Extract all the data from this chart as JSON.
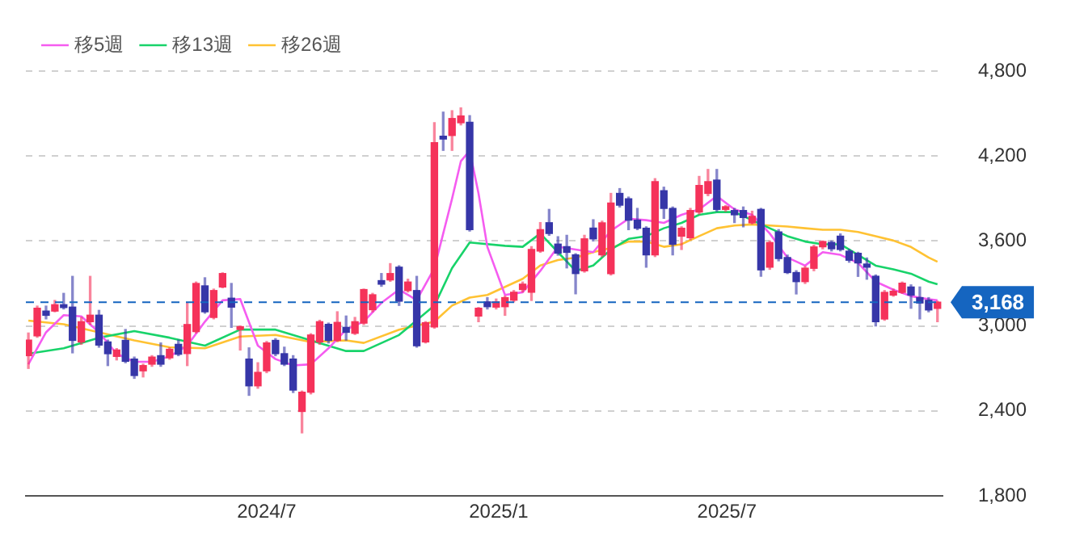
{
  "chart_data": {
    "type": "candlestick",
    "x": [
      "2023-12-25",
      "2024-01-01",
      "2024-01-08",
      "2024-01-15",
      "2024-01-22",
      "2024-01-29",
      "2024-02-05",
      "2024-02-12",
      "2024-02-19",
      "2024-02-26",
      "2024-03-04",
      "2024-03-11",
      "2024-03-18",
      "2024-03-25",
      "2024-04-01",
      "2024-04-08",
      "2024-04-15",
      "2024-04-22",
      "2024-04-29",
      "2024-05-06",
      "2024-05-13",
      "2024-05-20",
      "2024-05-27",
      "2024-06-03",
      "2024-06-10",
      "2024-06-17",
      "2024-06-24",
      "2024-07-01",
      "2024-07-08",
      "2024-07-15",
      "2024-07-22",
      "2024-07-29",
      "2024-08-05",
      "2024-08-12",
      "2024-08-19",
      "2024-08-26",
      "2024-09-02",
      "2024-09-09",
      "2024-09-16",
      "2024-09-23",
      "2024-09-30",
      "2024-10-07",
      "2024-10-14",
      "2024-10-21",
      "2024-10-28",
      "2024-11-04",
      "2024-11-11",
      "2024-11-18",
      "2024-11-25",
      "2024-12-02",
      "2024-12-09",
      "2024-12-16",
      "2024-12-23",
      "2024-12-30",
      "2025-01-06",
      "2025-01-13",
      "2025-01-20",
      "2025-01-27",
      "2025-02-03",
      "2025-02-10",
      "2025-02-17",
      "2025-02-24",
      "2025-03-03",
      "2025-03-10",
      "2025-03-17",
      "2025-03-24",
      "2025-03-31",
      "2025-04-07",
      "2025-04-14",
      "2025-04-21",
      "2025-04-28",
      "2025-05-05",
      "2025-05-12",
      "2025-05-19",
      "2025-05-26",
      "2025-06-02",
      "2025-06-09",
      "2025-06-16",
      "2025-06-23",
      "2025-06-30",
      "2025-07-07",
      "2025-07-14",
      "2025-07-21",
      "2025-07-28",
      "2025-08-04",
      "2025-08-11",
      "2025-08-18",
      "2025-08-25",
      "2025-09-01",
      "2025-09-08",
      "2025-09-15",
      "2025-09-22",
      "2025-09-29",
      "2025-10-06",
      "2025-10-13",
      "2025-10-20",
      "2025-10-27",
      "2025-11-03",
      "2025-11-10",
      "2025-11-17",
      "2025-11-24",
      "2025-12-01",
      "2025-12-08",
      "2025-12-15"
    ],
    "ohlc": [
      [
        2790,
        2950,
        2700,
        2900
      ],
      [
        2930,
        3140,
        2920,
        3125
      ],
      [
        3105,
        3140,
        3050,
        3075
      ],
      [
        3105,
        3180,
        3100,
        3150
      ],
      [
        3150,
        3230,
        3120,
        3130
      ],
      [
        3133,
        3350,
        2810,
        2898
      ],
      [
        2887,
        3060,
        2870,
        3030
      ],
      [
        3030,
        3350,
        3010,
        3076
      ],
      [
        3076,
        3110,
        2850,
        2865
      ],
      [
        2887,
        2900,
        2720,
        2804
      ],
      [
        2785,
        2840,
        2760,
        2830
      ],
      [
        2898,
        2975,
        2740,
        2750
      ],
      [
        2766,
        2780,
        2630,
        2650
      ],
      [
        2683,
        2730,
        2640,
        2720
      ],
      [
        2730,
        2790,
        2715,
        2780
      ],
      [
        2790,
        2880,
        2715,
        2730
      ],
      [
        2775,
        2845,
        2765,
        2835
      ],
      [
        2870,
        2900,
        2790,
        2800
      ],
      [
        2805,
        3165,
        2720,
        3010
      ],
      [
        2960,
        3310,
        2950,
        3300
      ],
      [
        3283,
        3340,
        3090,
        3100
      ],
      [
        3060,
        3260,
        3050,
        3250
      ],
      [
        3275,
        3375,
        3270,
        3370
      ],
      [
        3196,
        3300,
        2990,
        3133
      ],
      [
        2975,
        3000,
        2830,
        2995
      ],
      [
        2766,
        2845,
        2510,
        2577
      ],
      [
        2577,
        2740,
        2560,
        2672
      ],
      [
        2683,
        2890,
        2670,
        2880
      ],
      [
        2898,
        2910,
        2790,
        2804
      ],
      [
        2804,
        2850,
        2720,
        2730
      ],
      [
        2766,
        2790,
        2530,
        2547
      ],
      [
        2396,
        2540,
        2245,
        2532
      ],
      [
        2532,
        2945,
        2520,
        2936
      ],
      [
        2887,
        3040,
        2870,
        3030
      ],
      [
        3011,
        3020,
        2880,
        2898
      ],
      [
        2898,
        3100,
        2890,
        3025
      ],
      [
        2990,
        3070,
        2900,
        2955
      ],
      [
        2948,
        3060,
        2940,
        3030
      ],
      [
        3020,
        3260,
        3010,
        3257
      ],
      [
        3115,
        3230,
        3100,
        3220
      ],
      [
        3320,
        3370,
        3280,
        3295
      ],
      [
        3325,
        3440,
        3315,
        3370
      ],
      [
        3415,
        3425,
        3145,
        3175
      ],
      [
        3250,
        3330,
        3240,
        3310
      ],
      [
        3250,
        3350,
        2850,
        2860
      ],
      [
        2887,
        3030,
        2880,
        3023
      ],
      [
        2993,
        4435,
        2985,
        4295
      ],
      [
        4340,
        4510,
        4240,
        4320
      ],
      [
        4345,
        4520,
        4240,
        4465
      ],
      [
        4435,
        4540,
        4420,
        4483
      ],
      [
        4438,
        4485,
        3670,
        3680
      ],
      [
        3070,
        3130,
        3030,
        3125
      ],
      [
        3170,
        3200,
        3120,
        3136
      ],
      [
        3133,
        3190,
        3120,
        3170
      ],
      [
        3136,
        3210,
        3075,
        3200
      ],
      [
        3182,
        3250,
        3170,
        3238
      ],
      [
        3257,
        3310,
        3240,
        3295
      ],
      [
        3238,
        3560,
        3180,
        3540
      ],
      [
        3529,
        3730,
        3520,
        3680
      ],
      [
        3729,
        3823,
        3640,
        3653
      ],
      [
        3578,
        3630,
        3500,
        3514
      ],
      [
        3560,
        3640,
        3410,
        3520
      ],
      [
        3502,
        3510,
        3227,
        3370
      ],
      [
        3389,
        3640,
        3380,
        3615
      ],
      [
        3691,
        3750,
        3600,
        3615
      ],
      [
        3502,
        3740,
        3490,
        3728
      ],
      [
        3370,
        3936,
        3360,
        3868
      ],
      [
        3936,
        3970,
        3840,
        3853
      ],
      [
        3898,
        3910,
        3680,
        3747
      ],
      [
        3747,
        3830,
        3680,
        3690
      ],
      [
        3690,
        3700,
        3415,
        3502
      ],
      [
        3502,
        4040,
        3490,
        4019
      ],
      [
        3955,
        3980,
        3760,
        3830
      ],
      [
        3830,
        3840,
        3502,
        3577
      ],
      [
        3634,
        3700,
        3540,
        3690
      ],
      [
        3623,
        3830,
        3610,
        3815
      ],
      [
        3804,
        4056,
        3790,
        3992
      ],
      [
        3936,
        4105,
        3920,
        4019
      ],
      [
        4030,
        4105,
        3810,
        3823
      ],
      [
        3823,
        3850,
        3810,
        3842
      ],
      [
        3815,
        3830,
        3730,
        3785
      ],
      [
        3815,
        3840,
        3700,
        3766
      ],
      [
        3728,
        3810,
        3720,
        3774
      ],
      [
        3823,
        3830,
        3351,
        3396
      ],
      [
        3415,
        3600,
        3400,
        3589
      ],
      [
        3664,
        3680,
        3460,
        3476
      ],
      [
        3483,
        3500,
        3370,
        3377
      ],
      [
        3377,
        3390,
        3226,
        3313
      ],
      [
        3313,
        3420,
        3300,
        3408
      ],
      [
        3407,
        3570,
        3390,
        3558
      ],
      [
        3559,
        3600,
        3545,
        3596
      ],
      [
        3590,
        3600,
        3530,
        3545
      ],
      [
        3634,
        3650,
        3530,
        3540
      ],
      [
        3528,
        3540,
        3450,
        3464
      ],
      [
        3513,
        3520,
        3350,
        3445
      ],
      [
        3437,
        3480,
        3330,
        3415
      ],
      [
        3351,
        3360,
        3000,
        3030
      ],
      [
        3049,
        3250,
        3040,
        3237
      ],
      [
        3218,
        3260,
        3210,
        3245
      ],
      [
        3237,
        3310,
        3230,
        3302
      ],
      [
        3275,
        3290,
        3125,
        3218
      ],
      [
        3200,
        3275,
        3050,
        3162
      ],
      [
        3181,
        3200,
        3100,
        3113
      ],
      [
        3124,
        3175,
        3030,
        3168
      ]
    ],
    "colors": [
      "#f5325a",
      "#f5325a",
      "#3636a8",
      "#f5325a",
      "#3636a8",
      "#3636a8",
      "#f5325a",
      "#f5325a",
      "#3636a8",
      "#3636a8",
      "#f5325a",
      "#3636a8",
      "#3636a8",
      "#f5325a",
      "#f5325a",
      "#3636a8",
      "#f5325a",
      "#3636a8",
      "#f5325a",
      "#f5325a",
      "#3636a8",
      "#f5325a",
      "#f5325a",
      "#3636a8",
      "#f5325a",
      "#3636a8",
      "#f5325a",
      "#f5325a",
      "#3636a8",
      "#3636a8",
      "#3636a8",
      "#f5325a",
      "#f5325a",
      "#f5325a",
      "#3636a8",
      "#f5325a",
      "#3636a8",
      "#f5325a",
      "#f5325a",
      "#f5325a",
      "#3636a8",
      "#f5325a",
      "#3636a8",
      "#f5325a",
      "#3636a8",
      "#f5325a",
      "#f5325a",
      "#3636a8",
      "#f5325a",
      "#f5325a",
      "#3636a8",
      "#f5325a",
      "#3636a8",
      "#f5325a",
      "#f5325a",
      "#f5325a",
      "#f5325a",
      "#f5325a",
      "#f5325a",
      "#3636a8",
      "#3636a8",
      "#3636a8",
      "#3636a8",
      "#f5325a",
      "#3636a8",
      "#f5325a",
      "#f5325a",
      "#3636a8",
      "#3636a8",
      "#3636a8",
      "#3636a8",
      "#f5325a",
      "#3636a8",
      "#3636a8",
      "#f5325a",
      "#f5325a",
      "#f5325a",
      "#f5325a",
      "#3636a8",
      "#f5325a",
      "#3636a8",
      "#3636a8",
      "#f5325a",
      "#3636a8",
      "#f5325a",
      "#3636a8",
      "#3636a8",
      "#3636a8",
      "#f5325a",
      "#f5325a",
      "#f5325a",
      "#3636a8",
      "#3636a8",
      "#3636a8",
      "#3636a8",
      "#3636a8",
      "#3636a8",
      "#f5325a",
      "#f5325a",
      "#f5325a",
      "#3636a8",
      "#3636a8",
      "#3636a8",
      "#f5325a"
    ],
    "series": [
      {
        "name": "移5週",
        "type": "line",
        "color": "#f55cf0",
        "x": [
          "2023-12-25",
          "2024-01-08",
          "2024-01-22",
          "2024-02-05",
          "2024-02-19",
          "2024-03-04",
          "2024-03-18",
          "2024-04-01",
          "2024-04-15",
          "2024-04-29",
          "2024-05-13",
          "2024-05-27",
          "2024-06-10",
          "2024-06-24",
          "2024-07-08",
          "2024-07-22",
          "2024-08-05",
          "2024-08-19",
          "2024-09-02",
          "2024-09-16",
          "2024-09-30",
          "2024-10-14",
          "2024-10-28",
          "2024-11-11",
          "2024-11-25",
          "2024-12-02",
          "2024-12-09",
          "2024-12-16",
          "2024-12-23",
          "2025-01-06",
          "2025-01-20",
          "2025-02-03",
          "2025-02-17",
          "2025-03-03",
          "2025-03-17",
          "2025-03-31",
          "2025-04-14",
          "2025-04-28",
          "2025-05-12",
          "2025-05-26",
          "2025-06-09",
          "2025-06-23",
          "2025-07-07",
          "2025-07-21",
          "2025-08-04",
          "2025-08-18",
          "2025-09-01",
          "2025-09-15",
          "2025-09-29",
          "2025-10-13",
          "2025-10-27",
          "2025-11-10",
          "2025-11-24",
          "2025-12-08",
          "2025-12-15"
        ],
        "values": [
          2729,
          2955,
          3076,
          3068,
          2955,
          2804,
          2747,
          2747,
          2785,
          2861,
          3030,
          3181,
          3190,
          2861,
          2766,
          2721,
          2729,
          2842,
          2974,
          3031,
          3163,
          3257,
          3182,
          3408,
          3898,
          4163,
          4238,
          3936,
          3559,
          3219,
          3238,
          3389,
          3559,
          3540,
          3521,
          3672,
          3757,
          3747,
          3728,
          3785,
          3823,
          3917,
          3823,
          3785,
          3653,
          3483,
          3426,
          3521,
          3502,
          3445,
          3313,
          3256,
          3211,
          3188,
          3181
        ]
      },
      {
        "name": "移13週",
        "type": "line",
        "color": "#18d36a",
        "x": [
          "2023-12-25",
          "2024-01-22",
          "2024-02-19",
          "2024-03-18",
          "2024-04-15",
          "2024-05-13",
          "2024-06-10",
          "2024-07-08",
          "2024-08-05",
          "2024-09-02",
          "2024-09-16",
          "2024-10-14",
          "2024-11-11",
          "2024-11-25",
          "2024-12-09",
          "2025-01-06",
          "2025-01-20",
          "2025-02-03",
          "2025-02-17",
          "2025-03-03",
          "2025-03-17",
          "2025-03-31",
          "2025-04-14",
          "2025-04-28",
          "2025-05-12",
          "2025-05-26",
          "2025-06-09",
          "2025-06-23",
          "2025-07-07",
          "2025-07-21",
          "2025-08-04",
          "2025-08-18",
          "2025-09-01",
          "2025-09-15",
          "2025-09-29",
          "2025-10-13",
          "2025-10-27",
          "2025-11-10",
          "2025-11-24",
          "2025-12-08",
          "2025-12-15"
        ],
        "values": [
          2804,
          2842,
          2917,
          2963,
          2917,
          2861,
          2974,
          2974,
          2898,
          2823,
          2823,
          2936,
          3144,
          3408,
          3589,
          3566,
          3559,
          3653,
          3521,
          3389,
          3427,
          3540,
          3615,
          3634,
          3690,
          3728,
          3785,
          3804,
          3804,
          3747,
          3690,
          3634,
          3596,
          3577,
          3577,
          3502,
          3426,
          3400,
          3369,
          3313,
          3294
        ]
      },
      {
        "name": "移26週",
        "type": "line",
        "color": "#ffc233",
        "x": [
          "2023-12-25",
          "2024-01-22",
          "2024-02-19",
          "2024-03-18",
          "2024-04-15",
          "2024-05-13",
          "2024-06-10",
          "2024-07-08",
          "2024-08-05",
          "2024-09-02",
          "2024-09-16",
          "2024-10-14",
          "2024-11-11",
          "2024-11-25",
          "2024-12-09",
          "2024-12-23",
          "2025-01-06",
          "2025-01-20",
          "2025-02-03",
          "2025-02-17",
          "2025-03-03",
          "2025-03-17",
          "2025-03-31",
          "2025-04-14",
          "2025-04-28",
          "2025-05-12",
          "2025-05-26",
          "2025-06-09",
          "2025-06-23",
          "2025-07-07",
          "2025-07-21",
          "2025-08-04",
          "2025-08-18",
          "2025-09-01",
          "2025-09-15",
          "2025-09-29",
          "2025-10-13",
          "2025-10-27",
          "2025-11-10",
          "2025-11-24",
          "2025-12-08",
          "2025-12-15"
        ],
        "values": [
          3038,
          3012,
          2955,
          2898,
          2849,
          2842,
          2925,
          2936,
          2887,
          2898,
          2880,
          2974,
          3031,
          3144,
          3200,
          3219,
          3276,
          3333,
          3427,
          3465,
          3483,
          3521,
          3551,
          3596,
          3596,
          3559,
          3577,
          3634,
          3690,
          3709,
          3717,
          3709,
          3702,
          3690,
          3679,
          3679,
          3664,
          3634,
          3603,
          3558,
          3483,
          3453
        ]
      }
    ],
    "xlim": [
      "2023-12-23",
      "2025-12-19"
    ],
    "xticks": [
      {
        "value": "2024-07",
        "label": "2024/7"
      },
      {
        "value": "2025-01",
        "label": "2025/1"
      },
      {
        "value": "2025-07",
        "label": "2025/7"
      }
    ],
    "ylim": [
      1800,
      4800
    ],
    "yticks": [
      {
        "value": 1800,
        "label": "1,800"
      },
      {
        "value": 2400,
        "label": "2,400"
      },
      {
        "value": 3000,
        "label": "3,000"
      },
      {
        "value": 3600,
        "label": "3,600"
      },
      {
        "value": 4200,
        "label": "4,200"
      },
      {
        "value": 4800,
        "label": "4,800"
      }
    ],
    "ref_lines": [
      {
        "axis": "y",
        "value": 3168,
        "label": "3,168",
        "color": "#1565c0",
        "line_style": "dashed"
      }
    ],
    "grid": "y",
    "legend": "top left",
    "marker": "none",
    "line_style": "solid"
  }
}
